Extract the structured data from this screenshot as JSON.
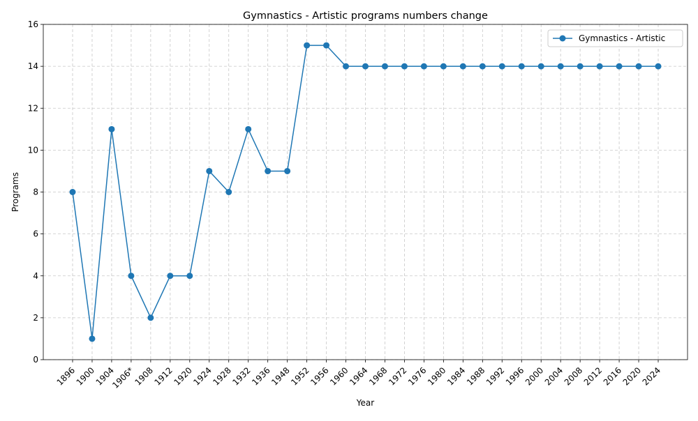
{
  "chart_data": {
    "type": "line",
    "title": "Gymnastics - Artistic programs numbers change",
    "xlabel": "Year",
    "ylabel": "Programs",
    "categories": [
      "1896",
      "1900",
      "1904",
      "1906*",
      "1908",
      "1912",
      "1920",
      "1924",
      "1928",
      "1932",
      "1936",
      "1948",
      "1952",
      "1956",
      "1960",
      "1964",
      "1968",
      "1972",
      "1976",
      "1980",
      "1984",
      "1988",
      "1992",
      "1996",
      "2000",
      "2004",
      "2008",
      "2012",
      "2016",
      "2020",
      "2024"
    ],
    "series": [
      {
        "name": "Gymnastics - Artistic",
        "color": "#1f77b4",
        "marker": "circle",
        "values": [
          8,
          1,
          11,
          4,
          2,
          4,
          4,
          9,
          8,
          11,
          9,
          9,
          15,
          15,
          14,
          14,
          14,
          14,
          14,
          14,
          14,
          14,
          14,
          14,
          14,
          14,
          14,
          14,
          14,
          14,
          14
        ]
      }
    ],
    "ylim": [
      0,
      16
    ],
    "yticks": [
      0,
      2,
      4,
      6,
      8,
      10,
      12,
      14,
      16
    ],
    "grid": true,
    "legend_position": "top-right"
  }
}
